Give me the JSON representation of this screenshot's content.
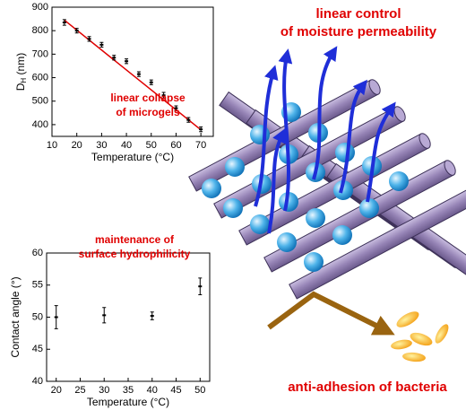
{
  "chart_data": [
    {
      "type": "scatter",
      "xlabel": "Temperature (°C)",
      "ylabel": "D",
      "ylabel_sub": "H",
      "ylabel_unit": " (nm)",
      "x": [
        15,
        20,
        25,
        30,
        35,
        40,
        45,
        50,
        55,
        60,
        65,
        70
      ],
      "values": [
        835,
        800,
        765,
        740,
        685,
        670,
        615,
        580,
        525,
        470,
        420,
        380
      ],
      "errors": [
        12,
        10,
        10,
        10,
        10,
        10,
        10,
        10,
        12,
        10,
        10,
        10
      ],
      "color": "#000000",
      "fit": {
        "x": [
          15,
          70
        ],
        "y": [
          845,
          378
        ],
        "color": "#e00000"
      },
      "annotation": [
        "linear collapse",
        "of microgels"
      ],
      "xlim": [
        10,
        75
      ],
      "ylim": [
        350,
        900
      ],
      "xticks": [
        10,
        20,
        30,
        40,
        50,
        60,
        70
      ],
      "yticks": [
        400,
        500,
        600,
        700,
        800,
        900
      ]
    },
    {
      "type": "scatter",
      "xlabel": "Temperature (°C)",
      "ylabel": "Contact angle (°)",
      "x": [
        20,
        30,
        40,
        50
      ],
      "values": [
        50,
        50.3,
        50.2,
        54.8
      ],
      "errors": [
        1.8,
        1.2,
        0.6,
        1.3
      ],
      "color": "#000000",
      "annotation": [
        "maintenance of",
        "surface hydrophilicity"
      ],
      "xlim": [
        18,
        52
      ],
      "ylim": [
        40,
        60
      ],
      "xticks": [
        20,
        25,
        30,
        35,
        40,
        45,
        50
      ],
      "yticks": [
        40,
        45,
        50,
        55,
        60
      ]
    }
  ],
  "labels": {
    "permeability": [
      "linear control",
      "of moisture permeability"
    ],
    "bacteria": "anti-adhesion of bacteria"
  }
}
